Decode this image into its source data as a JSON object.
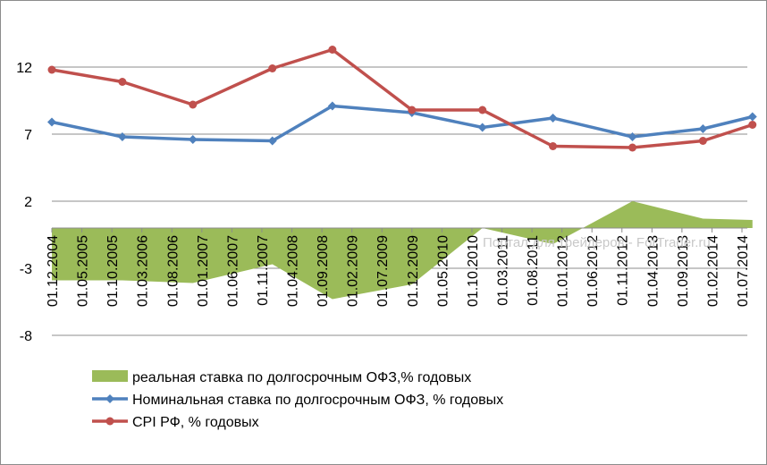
{
  "chart_data": {
    "type": "line",
    "ylim": [
      -8,
      17
    ],
    "yticks": [
      -8,
      -3,
      2,
      7,
      12
    ],
    "grid": "horizontal",
    "legend_position": "bottom",
    "categories": [
      "01.12.2004",
      "01.05.2005",
      "01.10.2005",
      "01.03.2006",
      "01.08.2006",
      "01.01.2007",
      "01.06.2007",
      "01.11.2007",
      "01.04.2008",
      "01.09.2008",
      "01.02.2009",
      "01.07.2009",
      "01.12.2009",
      "01.05.2010",
      "01.10.2010",
      "01.03.2011",
      "01.08.2011",
      "01.01.2012",
      "01.06.2012",
      "01.11.2012",
      "01.04.2013",
      "01.09.2013",
      "01.02.2014",
      "01.07.2014"
    ],
    "series": [
      {
        "name": "реальная ставка по долгосрочным ОФЗ,% годовых",
        "type": "area",
        "color": "#9bbb59",
        "x": [
          0,
          2.35,
          4.7,
          7.35,
          9.35,
          12,
          14.35,
          16.7,
          19.35,
          21.7,
          23.35
        ],
        "values": [
          -3.9,
          -3.9,
          -4.1,
          -2.7,
          -5.3,
          -4.2,
          0.0,
          -1.2,
          2.0,
          0.7,
          0.6
        ]
      },
      {
        "name": "Номинальная ставка по долгосрочным ОФЗ, % годовых",
        "type": "line",
        "color": "#4f81bd",
        "marker": "diamond",
        "x": [
          0,
          2.35,
          4.7,
          7.35,
          9.35,
          12,
          14.35,
          16.7,
          19.35,
          21.7,
          23.35
        ],
        "values": [
          7.9,
          6.8,
          6.6,
          6.5,
          9.1,
          8.6,
          7.5,
          8.2,
          6.8,
          7.4,
          8.3
        ]
      },
      {
        "name": "CPI РФ, % годовых",
        "type": "line",
        "color": "#c0504d",
        "marker": "circle",
        "x": [
          0,
          2.35,
          4.7,
          7.35,
          9.35,
          12,
          14.35,
          16.7,
          19.35,
          21.7,
          23.35
        ],
        "values": [
          11.8,
          10.9,
          9.2,
          11.9,
          13.3,
          8.8,
          8.8,
          6.1,
          6.0,
          6.5,
          7.7
        ]
      }
    ]
  },
  "watermark": "Портал для трейдеров - ForTrader.ru"
}
